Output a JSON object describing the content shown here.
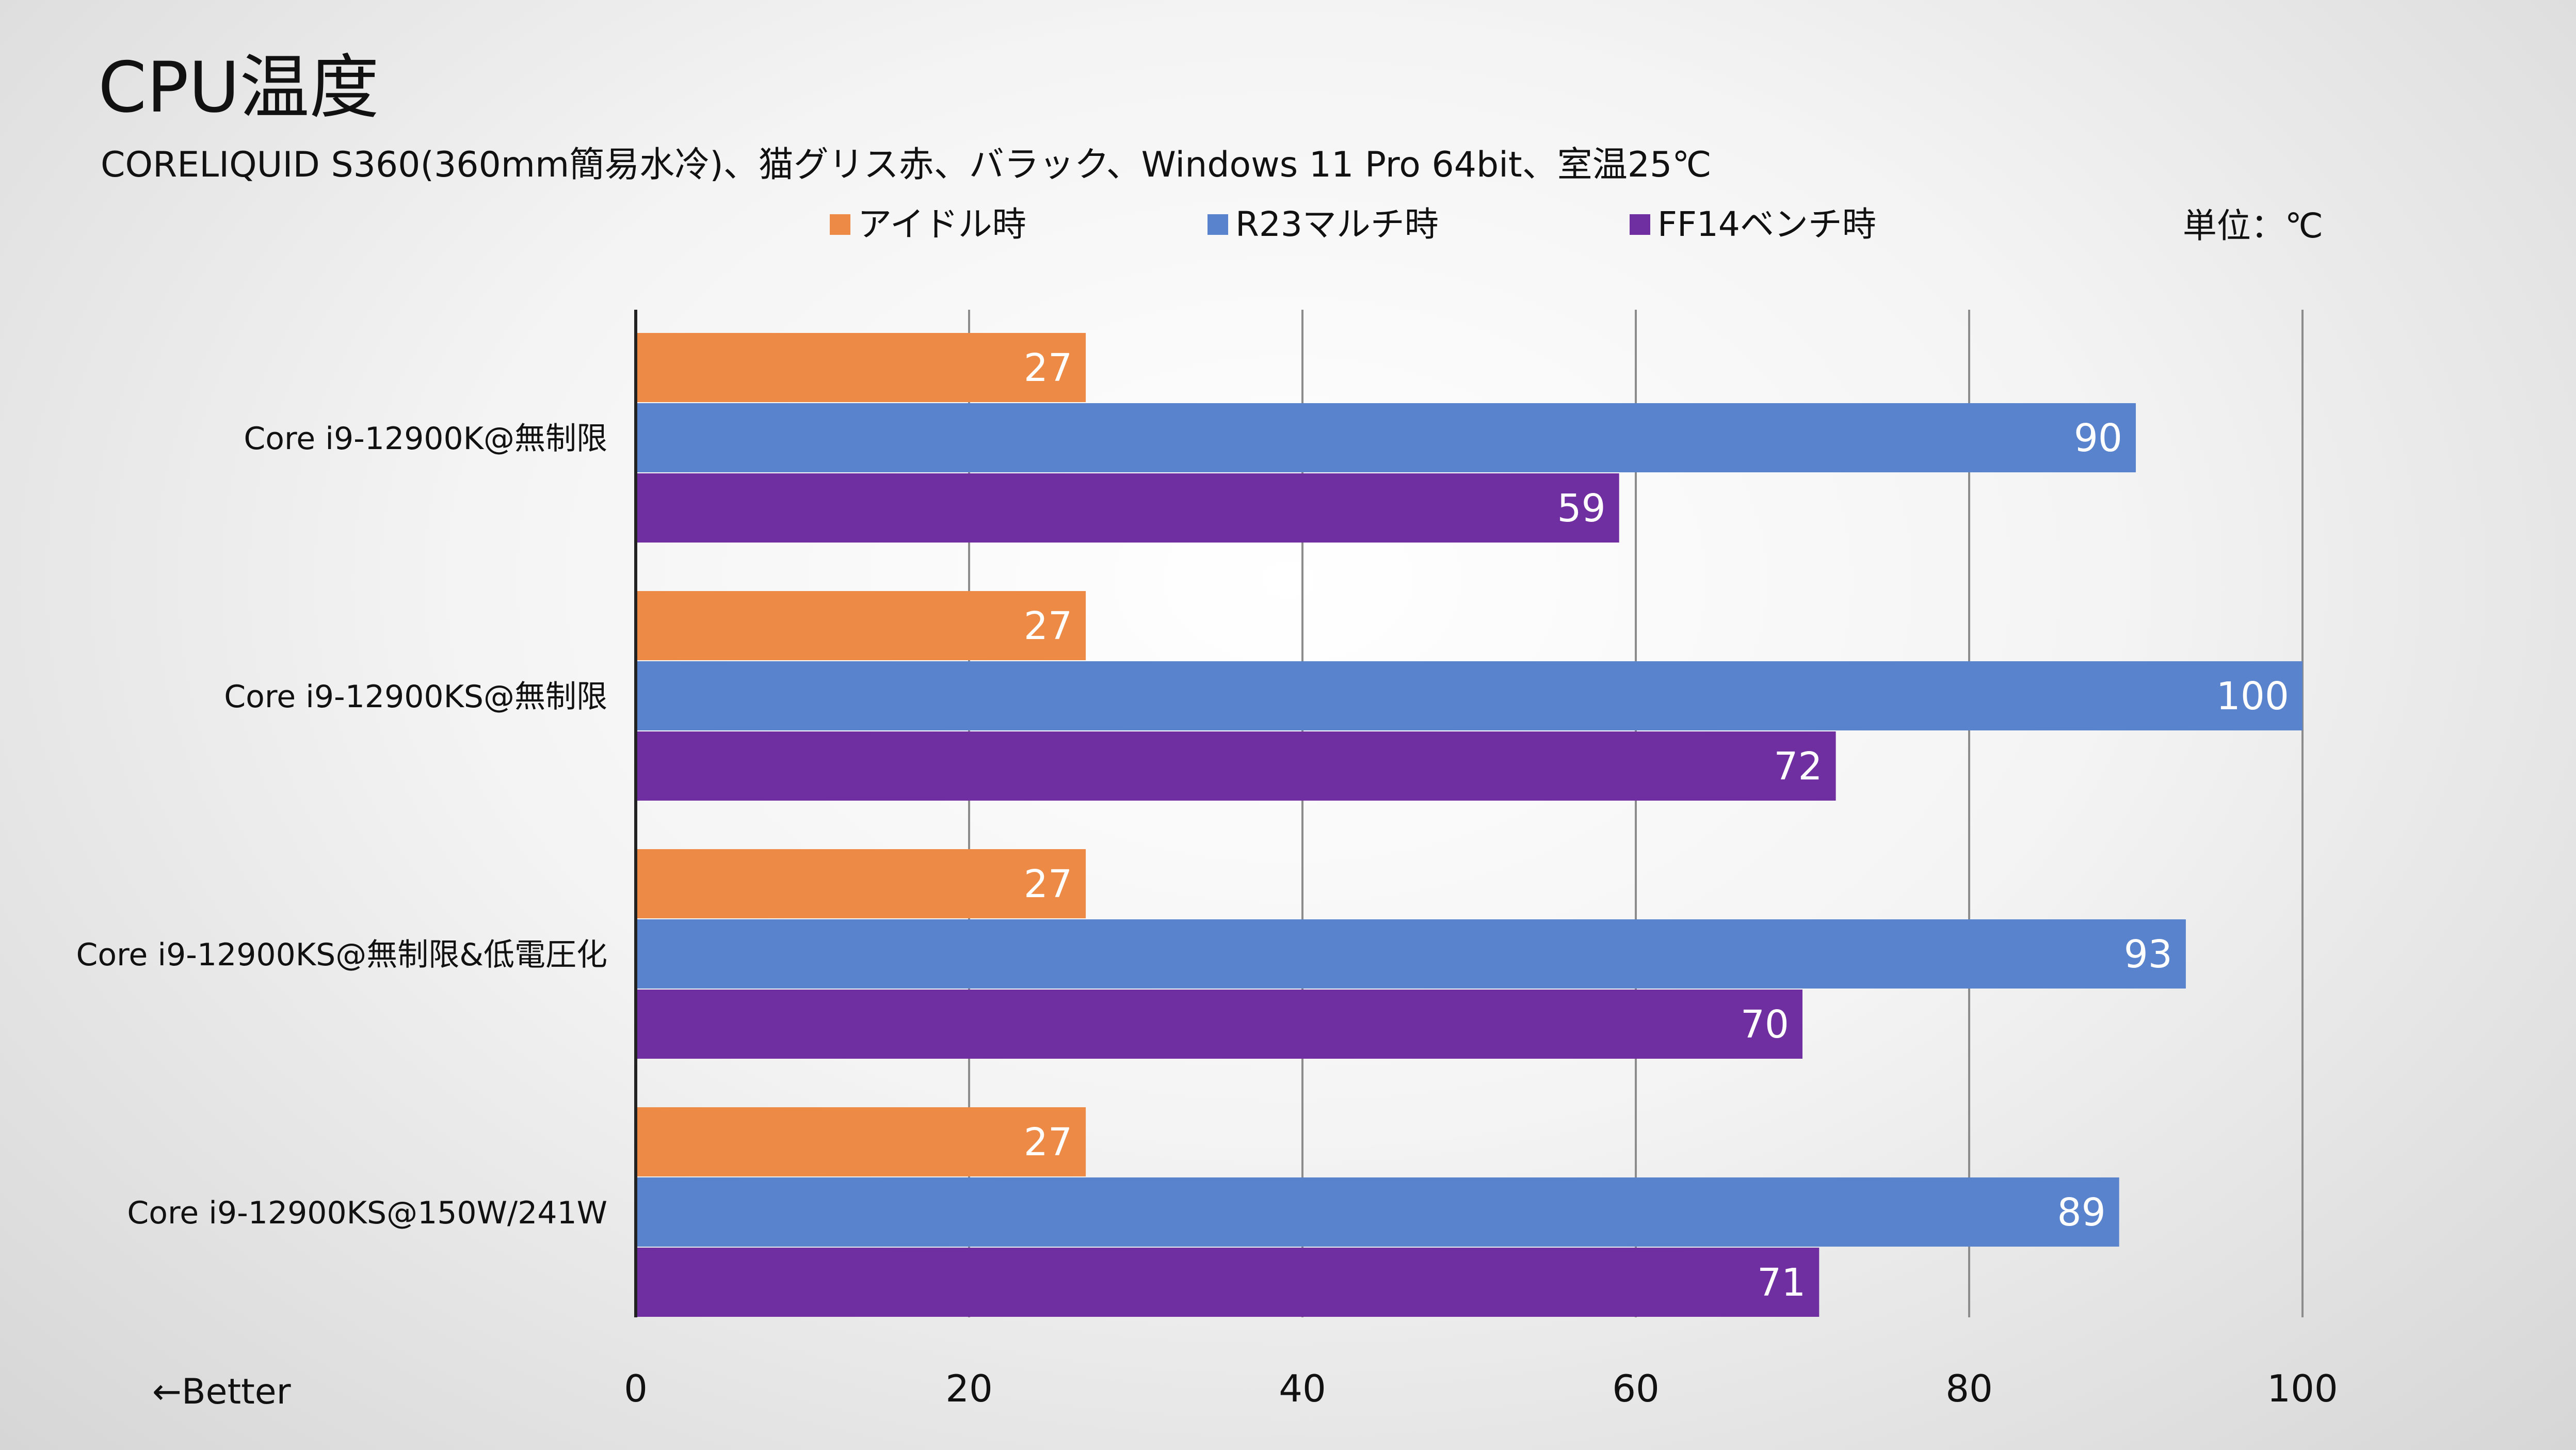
{
  "title": "CPU温度",
  "subtitle": "CORELIQUID S360(360mm簡易水冷)、猫グリス赤、バラック、Windows 11 Pro 64bit、室温25℃",
  "unit_label": "単位：℃",
  "better_label": "←Better",
  "colors": {
    "idle": "#ED8A46",
    "r23": "#5A83CD",
    "ff14": "#702FA0",
    "grid": "#8c8c8c",
    "axis": "#222222"
  },
  "chart_data": {
    "type": "bar",
    "orientation": "horizontal",
    "title": "CPU温度",
    "subtitle": "CORELIQUID S360(360mm簡易水冷)、猫グリス赤、バラック、Windows 11 Pro 64bit、室温25℃",
    "categories": [
      "Core i9-12900K@無制限",
      "Core i9-12900KS@無制限",
      "Core i9-12900KS@無制限&低電圧化",
      "Core i9-12900KS@150W/241W"
    ],
    "series": [
      {
        "name": "アイドル時",
        "color": "#ED8A46",
        "values": [
          27,
          27,
          27,
          27
        ]
      },
      {
        "name": "R23マルチ時",
        "color": "#5A83CD",
        "values": [
          90,
          100,
          93,
          89
        ]
      },
      {
        "name": "FF14ベンチ時",
        "color": "#702FA0",
        "values": [
          59,
          72,
          70,
          71
        ]
      }
    ],
    "xlim": [
      0,
      100
    ],
    "xticks": [
      0,
      20,
      40,
      60,
      80,
      100
    ],
    "grid": true,
    "legend_position": "top",
    "data_labels": true
  }
}
